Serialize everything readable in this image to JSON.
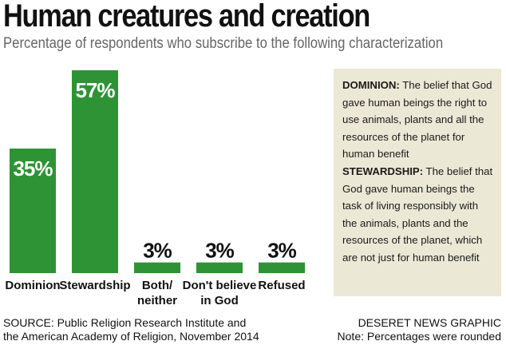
{
  "title": "Human creatures and creation",
  "subtitle": "Percentage of respondents who subscribe to the following characterization",
  "chart_data": {
    "type": "bar",
    "title": "Human creatures and creation",
    "subtitle": "Percentage of respondents who subscribe to the following characterization",
    "categories": [
      [
        "Dominion"
      ],
      [
        "Stewardship"
      ],
      [
        "Both/",
        "neither"
      ],
      [
        "Don't believe",
        "in God"
      ],
      [
        "Refused"
      ]
    ],
    "values": [
      35,
      57,
      3,
      3,
      3
    ],
    "value_labels": [
      "35%",
      "57%",
      "3%",
      "3%",
      "3%"
    ],
    "unit": "%",
    "ylim": [
      0,
      57
    ],
    "grid": false,
    "legend": "none",
    "bar_color": "#2e9334",
    "label_inside_color": "#ffffff",
    "label_outside_color": "#111111"
  },
  "definitions": [
    {
      "term": "DOMINION:",
      "text": "The belief that God gave human beings the right to use animals, plants and all the resources of the planet for human benefit"
    },
    {
      "term": "STEWARDSHIP:",
      "text": "The belief that God gave human beings the task of living responsibly with the animals, plants and the resources of the planet, which are not just for human benefit"
    }
  ],
  "source": {
    "line1": "SOURCE: Public Religion Research Institute and",
    "line2": "the American Academy of Religion, November 2014"
  },
  "credit": {
    "line1": "DESERET NEWS GRAPHIC",
    "line2": "Note: Percentages were rounded"
  }
}
